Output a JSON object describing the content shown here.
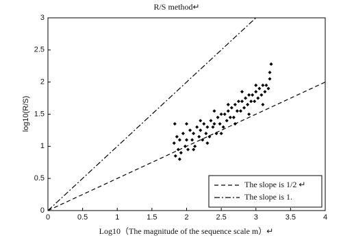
{
  "chart_data": {
    "type": "scatter",
    "title": "R/S method↵",
    "x_label": "Log10（The magnitude of the sequence scale m）↵",
    "y_label": "log10(R/S)",
    "xlim": [
      0,
      4
    ],
    "ylim": [
      0,
      3
    ],
    "xticks": [
      0,
      0.5,
      1,
      1.5,
      2,
      2.5,
      3,
      3.5,
      4
    ],
    "yticks": [
      0,
      0.5,
      1,
      1.5,
      2,
      2.5,
      3
    ],
    "legend": "lower right",
    "series": [
      {
        "mode": "markers",
        "color": "#000000",
        "x": [
          1.82,
          1.84,
          1.86,
          1.88,
          1.9,
          1.92,
          1.95,
          1.98,
          2.0,
          2.02,
          2.05,
          2.08,
          2.1,
          2.12,
          2.15,
          2.18,
          2.2,
          2.23,
          2.25,
          2.28,
          2.3,
          2.33,
          2.35,
          2.38,
          2.4,
          2.43,
          2.45,
          2.48,
          2.5,
          2.53,
          2.55,
          2.58,
          2.6,
          2.63,
          2.65,
          2.68,
          2.7,
          2.73,
          2.75,
          2.78,
          2.8,
          2.83,
          2.85,
          2.88,
          2.9,
          2.93,
          2.95,
          2.98,
          3.0,
          3.03,
          3.05,
          3.08,
          3.1,
          3.13,
          3.15,
          3.18,
          3.2,
          3.22,
          1.83,
          1.9,
          2.0,
          2.1,
          2.2,
          2.3,
          2.4,
          2.5,
          2.6,
          2.7,
          2.8,
          2.9,
          3.0,
          3.1,
          3.2
        ],
        "values": [
          1.05,
          0.85,
          1.15,
          0.95,
          1.1,
          0.9,
          1.2,
          1.0,
          1.1,
          0.95,
          1.25,
          1.1,
          1.2,
          1.0,
          1.3,
          1.15,
          1.25,
          1.1,
          1.35,
          1.2,
          1.3,
          1.15,
          1.4,
          1.3,
          1.35,
          1.2,
          1.45,
          1.35,
          1.5,
          1.3,
          1.5,
          1.4,
          1.55,
          1.45,
          1.6,
          1.45,
          1.65,
          1.55,
          1.7,
          1.55,
          1.7,
          1.6,
          1.75,
          1.65,
          1.8,
          1.7,
          1.8,
          1.7,
          1.85,
          1.75,
          1.9,
          1.8,
          1.95,
          1.85,
          1.95,
          1.9,
          2.05,
          2.28,
          1.35,
          0.8,
          1.35,
          0.95,
          1.4,
          1.05,
          1.55,
          1.2,
          1.65,
          1.35,
          1.85,
          1.5,
          1.95,
          1.65,
          2.15
        ]
      },
      {
        "name": "The slope is 1/2 ↵",
        "mode": "dashed",
        "color": "#000000",
        "x": [
          0,
          4
        ],
        "values": [
          0,
          2
        ]
      },
      {
        "name": "The  slope  is  1.",
        "mode": "dash-dot",
        "color": "#000000",
        "x": [
          0,
          3
        ],
        "values": [
          0,
          3
        ]
      }
    ]
  }
}
